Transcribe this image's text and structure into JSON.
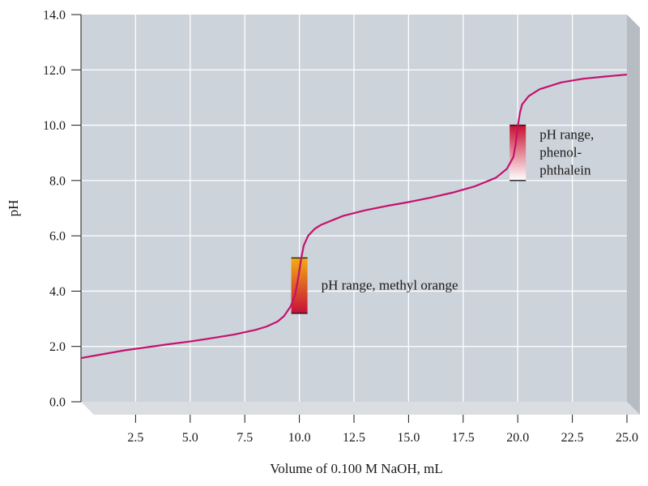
{
  "chart_data": {
    "type": "line",
    "xlabel": "Volume of 0.100 M NaOH, mL",
    "ylabel": "pH",
    "xlim": [
      0,
      25
    ],
    "ylim": [
      0,
      14
    ],
    "x_ticks": [
      "2.5",
      "5.0",
      "7.5",
      "10.0",
      "12.5",
      "15.0",
      "17.5",
      "20.0",
      "22.5",
      "25.0"
    ],
    "y_ticks": [
      "0.0",
      "2.0",
      "4.0",
      "6.0",
      "8.0",
      "10.0",
      "12.0",
      "14.0"
    ],
    "grid": true,
    "colors": {
      "plot_bg": "#cdd3da",
      "grid": "#ffffff",
      "curve": "#c4126e",
      "side_wall": "#b7bcc3",
      "floor": "#dadde1"
    },
    "series": [
      {
        "x": [
          0,
          1,
          2,
          3,
          4,
          5,
          6,
          7,
          8,
          8.5,
          9,
          9.3,
          9.6,
          9.8,
          9.9,
          10,
          10.1,
          10.2,
          10.4,
          10.7,
          11,
          12,
          13,
          14,
          15,
          16,
          17,
          18,
          19,
          19.5,
          19.8,
          19.9,
          20,
          20.1,
          20.2,
          20.5,
          21,
          22,
          23,
          24,
          25
        ],
        "y": [
          1.58,
          1.72,
          1.86,
          1.97,
          2.08,
          2.18,
          2.3,
          2.43,
          2.6,
          2.72,
          2.9,
          3.1,
          3.45,
          3.85,
          4.25,
          4.75,
          5.25,
          5.65,
          6.0,
          6.25,
          6.4,
          6.72,
          6.92,
          7.08,
          7.22,
          7.38,
          7.56,
          7.78,
          8.1,
          8.42,
          8.85,
          9.3,
          9.95,
          10.45,
          10.75,
          11.05,
          11.3,
          11.55,
          11.68,
          11.76,
          11.83
        ]
      }
    ],
    "indicators": [
      {
        "name": "methyl orange",
        "label_lines": [
          "pH range, methyl orange"
        ],
        "x": 10.0,
        "y_range": [
          3.2,
          5.2
        ],
        "color_low": "#c80e3a",
        "color_high": "#f2ad10"
      },
      {
        "name": "phenolphthalein",
        "label_lines": [
          "pH range,",
          "phenol-",
          "phthalein"
        ],
        "x": 20.0,
        "y_range": [
          8.0,
          10.0
        ],
        "color_low": "#ffffff",
        "color_high": "#c8102e"
      }
    ]
  }
}
